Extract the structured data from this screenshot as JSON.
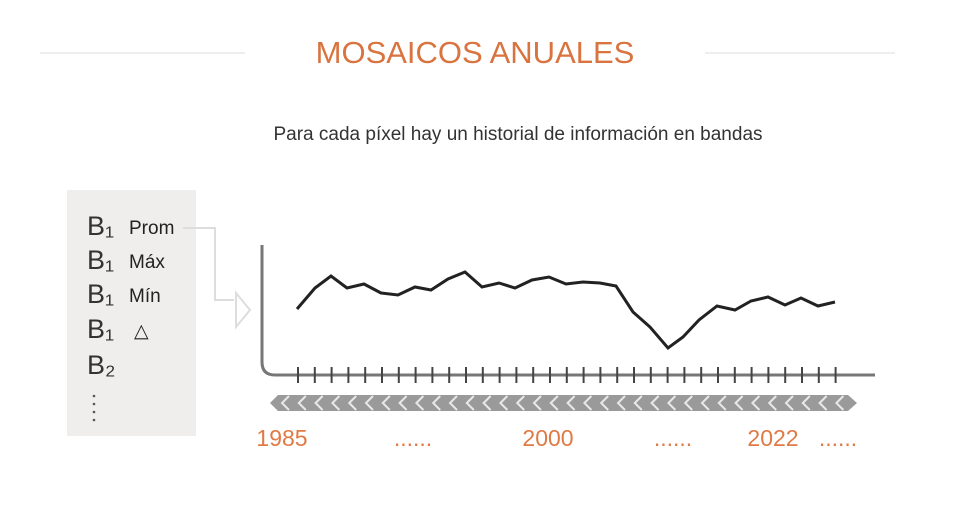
{
  "header": {
    "title": "MOSAICOS ANUALES"
  },
  "subtitle": "Para cada píxel hay un historial de información en bandas",
  "bands": [
    {
      "band": "B₁",
      "stat": "Prom"
    },
    {
      "band": "B₁",
      "stat": "Máx"
    },
    {
      "band": "B₁",
      "stat": "Mín"
    },
    {
      "band": "B₁",
      "stat": "△"
    },
    {
      "band": "B₂"
    }
  ],
  "years": [
    "1985",
    "......",
    "2000",
    "......",
    "2022",
    "......"
  ]
}
